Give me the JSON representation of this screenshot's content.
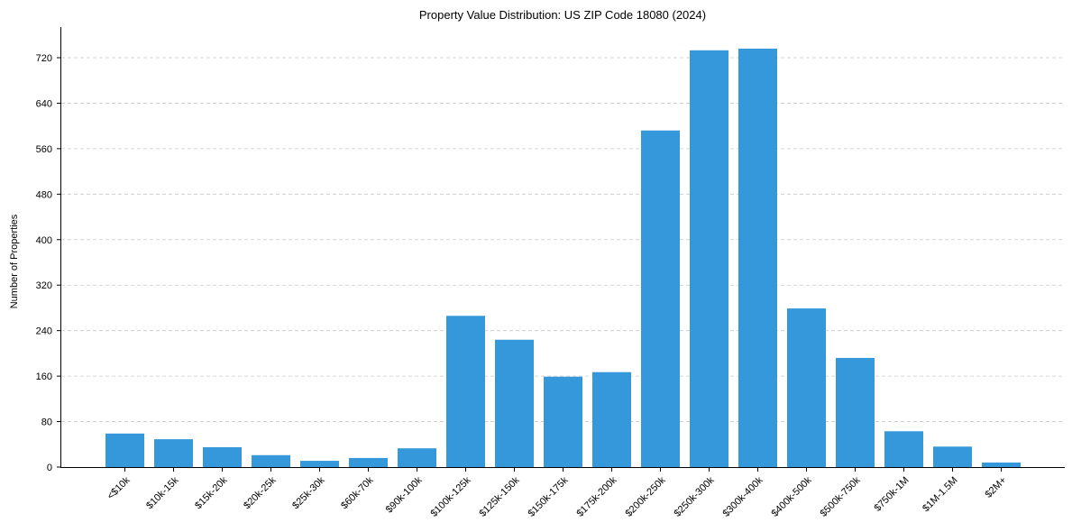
{
  "chart_data": {
    "type": "bar",
    "title": "Property Value Distribution: US ZIP Code 18080 (2024)",
    "xlabel": "",
    "ylabel": "Number of Properties",
    "ylim": [
      0,
      760
    ],
    "yticks": [
      0,
      80,
      160,
      240,
      320,
      400,
      480,
      560,
      640,
      720
    ],
    "grid": "y dashed",
    "legend": null,
    "bar_color": "#3498db",
    "categories": [
      "<$10k",
      "$10k-15k",
      "$15k-20k",
      "$20k-25k",
      "$25k-30k",
      "$60k-70k",
      "$90k-100k",
      "$100k-125k",
      "$125k-150k",
      "$150k-175k",
      "$175k-200k",
      "$200k-250k",
      "$250k-300k",
      "$300k-400k",
      "$400k-500k",
      "$500k-750k",
      "$750k-1M",
      "$1M-1.5M",
      "$2M+"
    ],
    "values": [
      59,
      49,
      35,
      21,
      11,
      16,
      33,
      266,
      224,
      159,
      167,
      592,
      733,
      736,
      279,
      192,
      63,
      36,
      8
    ]
  }
}
